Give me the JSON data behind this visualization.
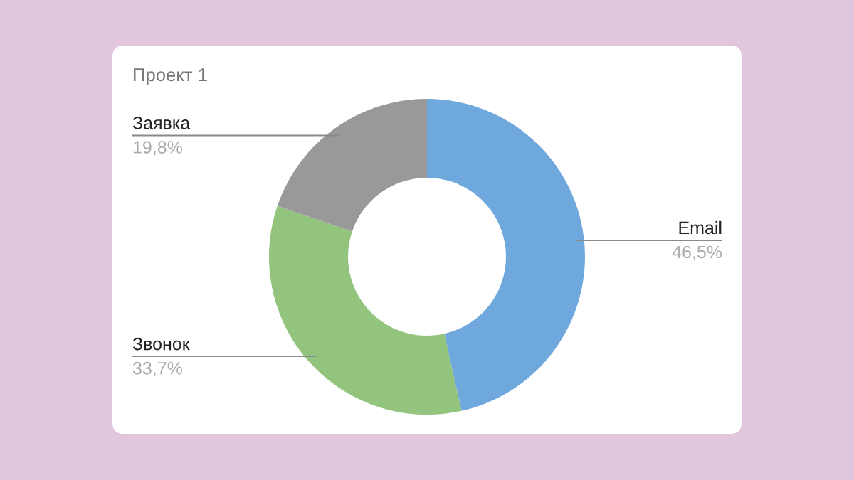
{
  "chart_data": {
    "type": "donut",
    "title": "Проект 1",
    "categories": [
      "Email",
      "Звонок",
      "Заявка"
    ],
    "values": [
      46.5,
      33.7,
      19.8
    ],
    "colors": [
      "#6fa8dc",
      "#93c47d",
      "#999999"
    ],
    "value_labels": [
      "46,5%",
      "33,7%",
      "19,8%"
    ]
  }
}
